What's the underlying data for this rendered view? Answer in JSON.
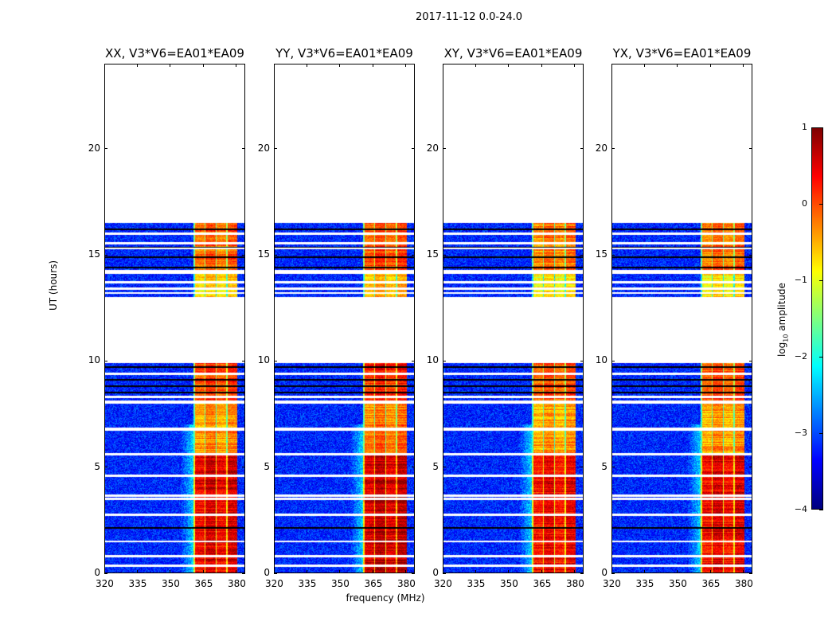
{
  "figure_title": "2017-11-12 0.0-24.0",
  "chart_data": {
    "type": "heatmap",
    "title": "2017-11-12 0.0-24.0",
    "xlabel": "frequency (MHz)",
    "ylabel": "UT (hours)",
    "xlim": [
      320,
      384
    ],
    "ylim": [
      0,
      24
    ],
    "xticks": [
      320,
      335,
      350,
      365,
      380
    ],
    "yticks": [
      0,
      5,
      10,
      15,
      20
    ],
    "panels": [
      {
        "title": "XX, V3*V6=EA01*EA09",
        "band_boost": 0.2
      },
      {
        "title": "YY, V3*V6=EA01*EA09",
        "band_boost": 0.35
      },
      {
        "title": "XY, V3*V6=EA01*EA09",
        "band_boost": 0.1
      },
      {
        "title": "YX, V3*V6=EA01*EA09",
        "band_boost": 0.15
      }
    ],
    "bright_band_mhz": [
      360.5,
      380.5
    ],
    "background_log_amplitude": -3.2,
    "segments": [
      {
        "start": 0.0,
        "end": 5.6,
        "band_level": 0.3
      },
      {
        "start": 5.65,
        "end": 6.7,
        "band_level": -0.5
      },
      {
        "start": 6.85,
        "end": 8.0,
        "band_level": -0.6
      },
      {
        "start": 8.15,
        "end": 9.9,
        "band_level": -0.1
      },
      {
        "start": 13.0,
        "end": 14.1,
        "band_level": -0.9
      },
      {
        "start": 14.3,
        "end": 16.5,
        "band_level": -0.3
      }
    ],
    "white_gap_hours": [
      0.35,
      0.8,
      1.5,
      2.75,
      3.5,
      3.65,
      4.6,
      5.6,
      8.3,
      9.4,
      13.2,
      13.4,
      13.7,
      15.3,
      15.55,
      16.0
    ],
    "flagged_black_hours": [
      2.15,
      6.75,
      8.5,
      8.8,
      9.1,
      9.7,
      14.15,
      14.4,
      14.9,
      15.35,
      16.2
    ],
    "colorbar": {
      "label_prefix": "log",
      "label_sub": "10",
      "label_suffix": " amplitude",
      "range": [
        -4,
        1
      ],
      "ticks": [
        "1",
        "0",
        "−1",
        "−2",
        "−3",
        "−4"
      ],
      "colormap": "jet"
    }
  }
}
